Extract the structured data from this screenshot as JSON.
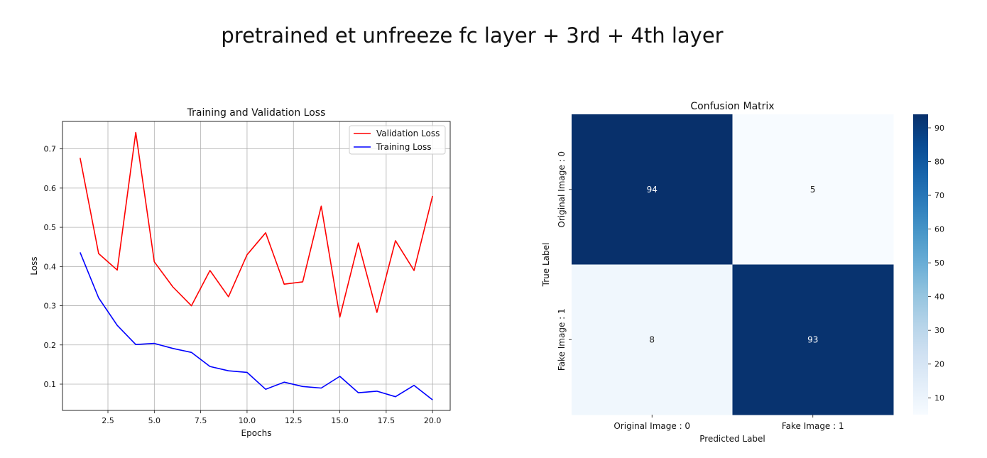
{
  "page_title": "pretrained et unfreeze fc layer + 3rd + 4th layer",
  "chart_data": [
    {
      "type": "line",
      "title": "Training and Validation Loss",
      "xlabel": "Epochs",
      "ylabel": "Loss",
      "xlim": [
        0.05,
        20.95
      ],
      "ylim": [
        0.033,
        0.77
      ],
      "x_ticks": [
        "2.5",
        "5.0",
        "7.5",
        "10.0",
        "12.5",
        "15.0",
        "17.5",
        "20.0"
      ],
      "y_ticks": [
        "0.1",
        "0.2",
        "0.3",
        "0.4",
        "0.5",
        "0.6",
        "0.7"
      ],
      "grid": true,
      "legend_position": "top-right",
      "x": [
        1,
        2,
        3,
        4,
        5,
        6,
        7,
        8,
        9,
        10,
        11,
        12,
        13,
        14,
        15,
        16,
        17,
        18,
        19,
        20
      ],
      "series": [
        {
          "name": "Validation Loss",
          "color": "#ff0000",
          "values": [
            0.677,
            0.433,
            0.391,
            0.742,
            0.412,
            0.348,
            0.3,
            0.39,
            0.323,
            0.43,
            0.486,
            0.355,
            0.361,
            0.554,
            0.271,
            0.46,
            0.283,
            0.466,
            0.39,
            0.58
          ]
        },
        {
          "name": "Training Loss",
          "color": "#0000ff",
          "values": [
            0.436,
            0.32,
            0.25,
            0.201,
            0.204,
            0.191,
            0.181,
            0.145,
            0.134,
            0.13,
            0.087,
            0.105,
            0.094,
            0.09,
            0.12,
            0.078,
            0.082,
            0.068,
            0.097,
            0.06
          ]
        }
      ]
    },
    {
      "type": "heatmap",
      "title": "Confusion Matrix",
      "xlabel": "Predicted Label",
      "ylabel": "True Label",
      "x_categories": [
        "Original Image : 0",
        "Fake Image : 1"
      ],
      "y_categories": [
        "Original Image : 0",
        "Fake Image : 1"
      ],
      "values": [
        [
          94,
          5
        ],
        [
          8,
          93
        ]
      ],
      "colormap": "Blues",
      "colorbar_range": [
        5,
        94
      ],
      "colorbar_ticks": [
        "10",
        "20",
        "30",
        "40",
        "50",
        "60",
        "70",
        "80",
        "90"
      ]
    }
  ]
}
